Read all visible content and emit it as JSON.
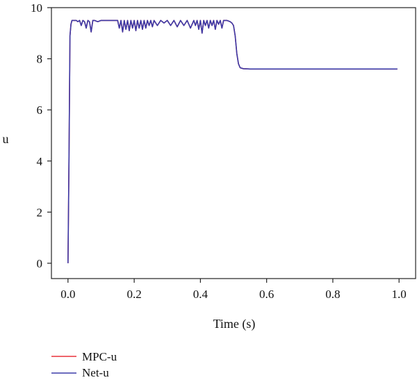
{
  "chart_data": {
    "type": "line",
    "title": "",
    "xlabel": "Time (s)",
    "ylabel": "u",
    "xlim": [
      -0.05,
      1.05
    ],
    "ylim": [
      -0.6,
      10
    ],
    "xticks": [
      0.0,
      0.2,
      0.4,
      0.6,
      0.8,
      1.0
    ],
    "xtick_labels": [
      "0.0",
      "0.2",
      "0.4",
      "0.6",
      "0.8",
      "1.0"
    ],
    "yticks": [
      0,
      2,
      4,
      6,
      8,
      10
    ],
    "ytick_labels": [
      "0",
      "2",
      "4",
      "6",
      "8",
      "10"
    ],
    "grid": false,
    "legend_position": "bottom-left",
    "series": [
      {
        "name": "MPC-u",
        "color": "#e8303a",
        "x": [
          0,
          0.003,
          0.006,
          0.009,
          0.012,
          0.015,
          0.025,
          0.03,
          0.035,
          0.04,
          0.045,
          0.05,
          0.055,
          0.06,
          0.065,
          0.07,
          0.075,
          0.08,
          0.09,
          0.1,
          0.12,
          0.14,
          0.15,
          0.155,
          0.16,
          0.165,
          0.17,
          0.175,
          0.18,
          0.185,
          0.19,
          0.195,
          0.2,
          0.205,
          0.21,
          0.215,
          0.22,
          0.225,
          0.23,
          0.235,
          0.24,
          0.245,
          0.25,
          0.255,
          0.26,
          0.27,
          0.28,
          0.29,
          0.3,
          0.31,
          0.32,
          0.33,
          0.34,
          0.35,
          0.36,
          0.37,
          0.38,
          0.385,
          0.39,
          0.395,
          0.4,
          0.405,
          0.41,
          0.415,
          0.42,
          0.425,
          0.43,
          0.435,
          0.44,
          0.445,
          0.45,
          0.455,
          0.46,
          0.465,
          0.47,
          0.48,
          0.49,
          0.495,
          0.5,
          0.505,
          0.51,
          0.515,
          0.52,
          0.53,
          0.55,
          0.6,
          0.7,
          0.8,
          0.9,
          0.995
        ],
        "y": [
          0,
          4.0,
          8.9,
          9.35,
          9.5,
          9.5,
          9.5,
          9.45,
          9.5,
          9.3,
          9.5,
          9.45,
          9.2,
          9.5,
          9.45,
          9.05,
          9.5,
          9.5,
          9.45,
          9.5,
          9.5,
          9.5,
          9.5,
          9.2,
          9.5,
          9.05,
          9.5,
          9.15,
          9.5,
          9.1,
          9.5,
          9.2,
          9.5,
          9.1,
          9.5,
          9.2,
          9.5,
          9.15,
          9.5,
          9.2,
          9.5,
          9.3,
          9.5,
          9.25,
          9.5,
          9.3,
          9.5,
          9.4,
          9.5,
          9.3,
          9.5,
          9.25,
          9.5,
          9.3,
          9.5,
          9.2,
          9.5,
          9.3,
          9.5,
          9.15,
          9.5,
          9.0,
          9.5,
          9.3,
          9.5,
          9.2,
          9.5,
          9.3,
          9.5,
          9.15,
          9.5,
          9.35,
          9.5,
          9.2,
          9.5,
          9.5,
          9.45,
          9.4,
          9.3,
          8.9,
          8.2,
          7.8,
          7.65,
          7.61,
          7.6,
          7.6,
          7.6,
          7.6,
          7.6,
          7.6
        ]
      },
      {
        "name": "Net-u",
        "color": "#3b3ba8",
        "x": [
          0,
          0.003,
          0.006,
          0.009,
          0.012,
          0.015,
          0.025,
          0.03,
          0.035,
          0.04,
          0.045,
          0.05,
          0.055,
          0.06,
          0.065,
          0.07,
          0.075,
          0.08,
          0.09,
          0.1,
          0.12,
          0.14,
          0.15,
          0.155,
          0.16,
          0.165,
          0.17,
          0.175,
          0.18,
          0.185,
          0.19,
          0.195,
          0.2,
          0.205,
          0.21,
          0.215,
          0.22,
          0.225,
          0.23,
          0.235,
          0.24,
          0.245,
          0.25,
          0.255,
          0.26,
          0.27,
          0.28,
          0.29,
          0.3,
          0.31,
          0.32,
          0.33,
          0.34,
          0.35,
          0.36,
          0.37,
          0.38,
          0.385,
          0.39,
          0.395,
          0.4,
          0.405,
          0.41,
          0.415,
          0.42,
          0.425,
          0.43,
          0.435,
          0.44,
          0.445,
          0.45,
          0.455,
          0.46,
          0.465,
          0.47,
          0.48,
          0.49,
          0.495,
          0.5,
          0.505,
          0.51,
          0.515,
          0.52,
          0.53,
          0.55,
          0.6,
          0.7,
          0.8,
          0.9,
          0.995
        ],
        "y": [
          0,
          4.0,
          8.9,
          9.35,
          9.5,
          9.5,
          9.5,
          9.45,
          9.5,
          9.3,
          9.5,
          9.45,
          9.2,
          9.5,
          9.45,
          9.05,
          9.5,
          9.5,
          9.45,
          9.5,
          9.5,
          9.5,
          9.5,
          9.2,
          9.5,
          9.05,
          9.5,
          9.15,
          9.5,
          9.1,
          9.5,
          9.2,
          9.5,
          9.1,
          9.5,
          9.2,
          9.5,
          9.15,
          9.5,
          9.2,
          9.5,
          9.3,
          9.5,
          9.25,
          9.5,
          9.3,
          9.5,
          9.4,
          9.5,
          9.3,
          9.5,
          9.25,
          9.5,
          9.3,
          9.5,
          9.2,
          9.5,
          9.3,
          9.5,
          9.15,
          9.5,
          9.0,
          9.5,
          9.3,
          9.5,
          9.2,
          9.5,
          9.3,
          9.5,
          9.15,
          9.5,
          9.35,
          9.5,
          9.2,
          9.5,
          9.5,
          9.45,
          9.4,
          9.3,
          8.9,
          8.2,
          7.8,
          7.65,
          7.61,
          7.6,
          7.6,
          7.6,
          7.6,
          7.6,
          7.6
        ]
      }
    ]
  }
}
